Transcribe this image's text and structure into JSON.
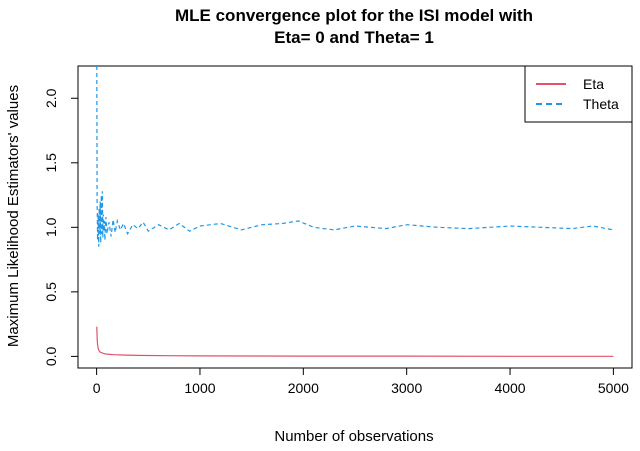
{
  "chart_data": {
    "type": "line",
    "title_line1": "MLE convergence plot for the ISI model with",
    "title_line2": "Eta= 0 and Theta= 1",
    "xlabel": "Number of observations",
    "ylabel": "Maximum Likelihood Estimators' values",
    "xlim": [
      -180,
      5180
    ],
    "ylim": [
      -0.09,
      2.25
    ],
    "xticks": [
      0,
      1000,
      2000,
      3000,
      4000,
      5000
    ],
    "xtick_labels": [
      "0",
      "1000",
      "2000",
      "3000",
      "4000",
      "5000"
    ],
    "yticks": [
      0.0,
      0.5,
      1.0,
      1.5,
      2.0
    ],
    "ytick_labels": [
      "0.0",
      "0.5",
      "1.0",
      "1.5",
      "2.0"
    ],
    "grid": false,
    "legend_position": "top-right",
    "series": [
      {
        "name": "Eta",
        "color": "#DF536B",
        "style": "solid",
        "x": [
          2,
          6,
          10,
          15,
          20,
          30,
          45,
          60,
          80,
          100,
          130,
          160,
          200,
          250,
          300,
          400,
          500,
          700,
          1000,
          1500,
          2000,
          3000,
          4000,
          5000
        ],
        "values": [
          0.23,
          0.13,
          0.09,
          0.06,
          0.05,
          0.035,
          0.03,
          0.025,
          0.02,
          0.018,
          0.015,
          0.013,
          0.012,
          0.011,
          0.01,
          0.008,
          0.007,
          0.005,
          0.004,
          0.003,
          0.002,
          0.002,
          0.001,
          0.001
        ]
      },
      {
        "name": "Theta",
        "color": "#2297E6",
        "style": "dashed",
        "x": [
          2,
          5,
          10,
          15,
          20,
          25,
          30,
          35,
          40,
          45,
          50,
          55,
          60,
          65,
          70,
          75,
          80,
          90,
          100,
          120,
          140,
          160,
          180,
          200,
          230,
          260,
          300,
          350,
          400,
          450,
          500,
          600,
          700,
          800,
          900,
          1000,
          1200,
          1400,
          1600,
          1800,
          1950,
          2100,
          2300,
          2500,
          2800,
          3000,
          3300,
          3600,
          4000,
          4300,
          4600,
          4800,
          5000
        ],
        "values": [
          2.25,
          1.2,
          0.9,
          1.1,
          0.85,
          1.15,
          0.95,
          1.2,
          0.88,
          1.25,
          0.95,
          1.28,
          0.92,
          1.1,
          0.97,
          1.05,
          0.9,
          1.08,
          0.95,
          1.04,
          0.93,
          1.06,
          0.96,
          1.05,
          0.98,
          1.03,
          0.95,
          1.02,
          0.99,
          1.04,
          0.97,
          1.02,
          0.98,
          1.03,
          0.97,
          1.01,
          1.03,
          0.98,
          1.02,
          1.03,
          1.05,
          1.0,
          0.98,
          1.01,
          0.99,
          1.02,
          1.0,
          0.99,
          1.01,
          1.0,
          0.99,
          1.01,
          0.98
        ]
      }
    ]
  }
}
